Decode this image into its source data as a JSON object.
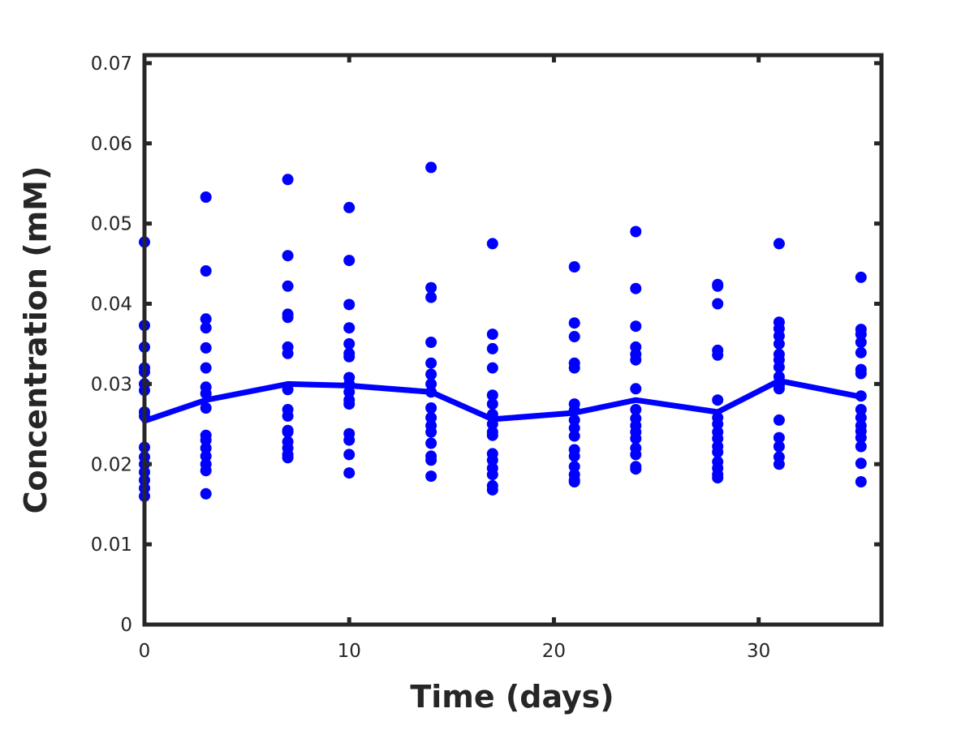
{
  "chart_data": {
    "type": "scatter",
    "title": "",
    "xlabel": "Time (days)",
    "ylabel": "Concentration (mM)",
    "xlim": [
      0,
      36
    ],
    "ylim": [
      0,
      0.071
    ],
    "grid": false,
    "box": true,
    "xticks": [
      0,
      10,
      20,
      30
    ],
    "xtick_labels": [
      "0",
      "10",
      "20",
      "30"
    ],
    "yticks": [
      0,
      0.01,
      0.02,
      0.03,
      0.04,
      0.05,
      0.06,
      0.07
    ],
    "ytick_labels": [
      "0",
      "0.01",
      "0.02",
      "0.03",
      "0.04",
      "0.05",
      "0.06",
      "0.07"
    ],
    "colors": {
      "series": "#0000ff",
      "axis": "#262626"
    },
    "series": [
      {
        "kind": "scatter",
        "points": [
          [
            0,
            0.0477
          ],
          [
            0,
            0.0373
          ],
          [
            0,
            0.0346
          ],
          [
            0,
            0.032
          ],
          [
            0,
            0.0315
          ],
          [
            0,
            0.03
          ],
          [
            0,
            0.0292
          ],
          [
            0,
            0.0265
          ],
          [
            0,
            0.026
          ],
          [
            0,
            0.0221
          ],
          [
            0,
            0.0209
          ],
          [
            0,
            0.02
          ],
          [
            0,
            0.019
          ],
          [
            0,
            0.018
          ],
          [
            0,
            0.017
          ],
          [
            0,
            0.016
          ],
          [
            3,
            0.0533
          ],
          [
            3,
            0.0441
          ],
          [
            3,
            0.0381
          ],
          [
            3,
            0.037
          ],
          [
            3,
            0.0345
          ],
          [
            3,
            0.032
          ],
          [
            3,
            0.0296
          ],
          [
            3,
            0.0288
          ],
          [
            3,
            0.027
          ],
          [
            3,
            0.0236
          ],
          [
            3,
            0.023
          ],
          [
            3,
            0.022
          ],
          [
            3,
            0.021
          ],
          [
            3,
            0.02
          ],
          [
            3,
            0.0192
          ],
          [
            3,
            0.0163
          ],
          [
            7,
            0.0555
          ],
          [
            7,
            0.046
          ],
          [
            7,
            0.0422
          ],
          [
            7,
            0.0387
          ],
          [
            7,
            0.0383
          ],
          [
            7,
            0.0346
          ],
          [
            7,
            0.0338
          ],
          [
            7,
            0.0293
          ],
          [
            7,
            0.0268
          ],
          [
            7,
            0.026
          ],
          [
            7,
            0.0242
          ],
          [
            7,
            0.024
          ],
          [
            7,
            0.0228
          ],
          [
            7,
            0.022
          ],
          [
            7,
            0.0212
          ],
          [
            7,
            0.0208
          ],
          [
            10,
            0.052
          ],
          [
            10,
            0.0454
          ],
          [
            10,
            0.0399
          ],
          [
            10,
            0.037
          ],
          [
            10,
            0.035
          ],
          [
            10,
            0.0338
          ],
          [
            10,
            0.0334
          ],
          [
            10,
            0.0308
          ],
          [
            10,
            0.03
          ],
          [
            10,
            0.029
          ],
          [
            10,
            0.028
          ],
          [
            10,
            0.0275
          ],
          [
            10,
            0.0238
          ],
          [
            10,
            0.023
          ],
          [
            10,
            0.0212
          ],
          [
            10,
            0.0189
          ],
          [
            14,
            0.057
          ],
          [
            14,
            0.042
          ],
          [
            14,
            0.0408
          ],
          [
            14,
            0.0352
          ],
          [
            14,
            0.0326
          ],
          [
            14,
            0.0312
          ],
          [
            14,
            0.03
          ],
          [
            14,
            0.029
          ],
          [
            14,
            0.027
          ],
          [
            14,
            0.0258
          ],
          [
            14,
            0.0248
          ],
          [
            14,
            0.024
          ],
          [
            14,
            0.0226
          ],
          [
            14,
            0.021
          ],
          [
            14,
            0.0205
          ],
          [
            14,
            0.0185
          ],
          [
            17,
            0.0475
          ],
          [
            17,
            0.0362
          ],
          [
            17,
            0.0344
          ],
          [
            17,
            0.032
          ],
          [
            17,
            0.0286
          ],
          [
            17,
            0.0275
          ],
          [
            17,
            0.0262
          ],
          [
            17,
            0.025
          ],
          [
            17,
            0.024
          ],
          [
            17,
            0.0236
          ],
          [
            17,
            0.0213
          ],
          [
            17,
            0.0205
          ],
          [
            17,
            0.0195
          ],
          [
            17,
            0.0187
          ],
          [
            17,
            0.0173
          ],
          [
            17,
            0.0168
          ],
          [
            21,
            0.0446
          ],
          [
            21,
            0.0376
          ],
          [
            21,
            0.0359
          ],
          [
            21,
            0.0326
          ],
          [
            21,
            0.032
          ],
          [
            21,
            0.0275
          ],
          [
            21,
            0.0267
          ],
          [
            21,
            0.0255
          ],
          [
            21,
            0.0245
          ],
          [
            21,
            0.0235
          ],
          [
            21,
            0.0218
          ],
          [
            21,
            0.021
          ],
          [
            21,
            0.0197
          ],
          [
            21,
            0.0187
          ],
          [
            21,
            0.018
          ],
          [
            21,
            0.0178
          ],
          [
            24,
            0.049
          ],
          [
            24,
            0.0419
          ],
          [
            24,
            0.0372
          ],
          [
            24,
            0.0346
          ],
          [
            24,
            0.0337
          ],
          [
            24,
            0.033
          ],
          [
            24,
            0.0294
          ],
          [
            24,
            0.0268
          ],
          [
            24,
            0.0257
          ],
          [
            24,
            0.0248
          ],
          [
            24,
            0.024
          ],
          [
            24,
            0.0232
          ],
          [
            24,
            0.022
          ],
          [
            24,
            0.0212
          ],
          [
            24,
            0.0197
          ],
          [
            24,
            0.0194
          ],
          [
            28,
            0.0424
          ],
          [
            28,
            0.0422
          ],
          [
            28,
            0.04
          ],
          [
            28,
            0.0342
          ],
          [
            28,
            0.0336
          ],
          [
            28,
            0.028
          ],
          [
            28,
            0.0258
          ],
          [
            28,
            0.025
          ],
          [
            28,
            0.024
          ],
          [
            28,
            0.0232
          ],
          [
            28,
            0.0222
          ],
          [
            28,
            0.0215
          ],
          [
            28,
            0.0203
          ],
          [
            28,
            0.0195
          ],
          [
            28,
            0.0187
          ],
          [
            28,
            0.0183
          ],
          [
            31,
            0.0475
          ],
          [
            31,
            0.0377
          ],
          [
            31,
            0.0369
          ],
          [
            31,
            0.036
          ],
          [
            31,
            0.035
          ],
          [
            31,
            0.0337
          ],
          [
            31,
            0.033
          ],
          [
            31,
            0.0321
          ],
          [
            31,
            0.0309
          ],
          [
            31,
            0.0298
          ],
          [
            31,
            0.0294
          ],
          [
            31,
            0.0255
          ],
          [
            31,
            0.0233
          ],
          [
            31,
            0.0222
          ],
          [
            31,
            0.0209
          ],
          [
            31,
            0.02
          ],
          [
            35,
            0.0433
          ],
          [
            35,
            0.0368
          ],
          [
            35,
            0.0362
          ],
          [
            35,
            0.0352
          ],
          [
            35,
            0.0339
          ],
          [
            35,
            0.0318
          ],
          [
            35,
            0.0313
          ],
          [
            35,
            0.0285
          ],
          [
            35,
            0.0268
          ],
          [
            35,
            0.0258
          ],
          [
            35,
            0.0248
          ],
          [
            35,
            0.0241
          ],
          [
            35,
            0.0233
          ],
          [
            35,
            0.0222
          ],
          [
            35,
            0.0201
          ],
          [
            35,
            0.0178
          ]
        ]
      },
      {
        "kind": "line",
        "x": [
          0,
          3,
          7,
          10,
          14,
          17,
          21,
          24,
          28,
          31,
          35
        ],
        "y": [
          0.0254,
          0.028,
          0.03,
          0.0298,
          0.029,
          0.0256,
          0.0264,
          0.028,
          0.0265,
          0.0304,
          0.0284
        ]
      }
    ]
  }
}
